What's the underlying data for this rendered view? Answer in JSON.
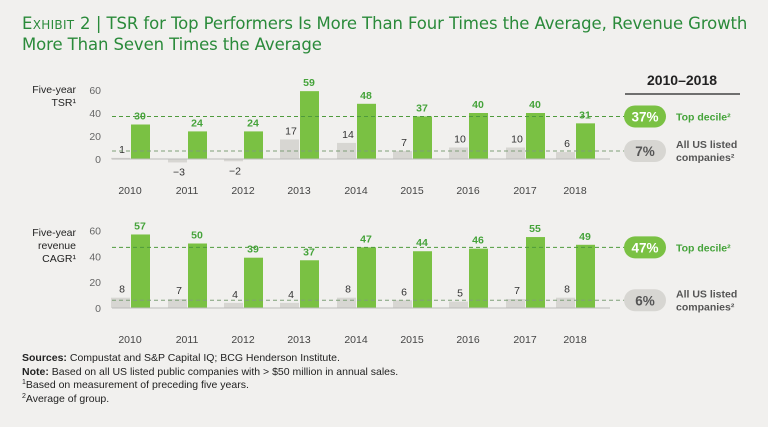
{
  "title": {
    "exhibit": "Exhibit 2",
    "separator": "|",
    "text": "TSR for Top Performers Is More Than Four Times the Average, Revenue Growth More Than Seven Times the Average"
  },
  "legend_header": "2010–2018",
  "colors": {
    "top": "#7ac143",
    "avg": "#d7d6d2",
    "title": "#2a8a3a",
    "top_label": "#45a33a",
    "avg_label": "#555555"
  },
  "chart_data": [
    {
      "type": "bar",
      "ylabel": [
        "Five-year",
        "TSR¹"
      ],
      "categories": [
        "2010",
        "2011",
        "2012",
        "2013",
        "2014",
        "2015",
        "2016",
        "2017",
        "2018"
      ],
      "ylim": [
        -4,
        62
      ],
      "yticks": [
        0,
        20,
        40,
        60
      ],
      "series": [
        {
          "name": "All US listed companies²",
          "values": [
            1,
            -3,
            -2,
            17,
            14,
            7,
            10,
            10,
            6
          ]
        },
        {
          "name": "Top decile²",
          "values": [
            30,
            24,
            24,
            59,
            48,
            37,
            40,
            40,
            31
          ]
        }
      ],
      "reference_lines": [
        {
          "name": "Top decile²",
          "value": 37,
          "label": "37%"
        },
        {
          "name": "All US listed companies²",
          "value": 7,
          "label": "7%"
        }
      ]
    },
    {
      "type": "bar",
      "ylabel": [
        "Five-year",
        "revenue",
        "CAGR¹"
      ],
      "categories": [
        "2010",
        "2011",
        "2012",
        "2013",
        "2014",
        "2015",
        "2016",
        "2017",
        "2018"
      ],
      "ylim": [
        0,
        62
      ],
      "yticks": [
        0,
        20,
        40,
        60
      ],
      "series": [
        {
          "name": "All US listed companies²",
          "values": [
            8,
            7,
            4,
            4,
            8,
            6,
            5,
            7,
            8
          ]
        },
        {
          "name": "Top decile²",
          "values": [
            57,
            50,
            39,
            37,
            47,
            44,
            46,
            55,
            49
          ]
        }
      ],
      "reference_lines": [
        {
          "name": "Top decile²",
          "value": 47,
          "label": "47%"
        },
        {
          "name": "All US listed companies²",
          "value": 6,
          "label": "6%"
        }
      ]
    }
  ],
  "legend": {
    "top_label": "Top decile²",
    "avg_label_line1": "All US listed",
    "avg_label_line2": "companies²"
  },
  "notes": {
    "sources_label": "Sources:",
    "sources_text": " Compustat and S&P Capital IQ; BCG Henderson Institute.",
    "note_label": "Note:",
    "note_text": " Based on all US listed public companies with > $50 million in annual sales.",
    "footnote1_mark": "1",
    "footnote1": "Based on measurement of preceding five years.",
    "footnote2_mark": "2",
    "footnote2": "Average of group."
  }
}
